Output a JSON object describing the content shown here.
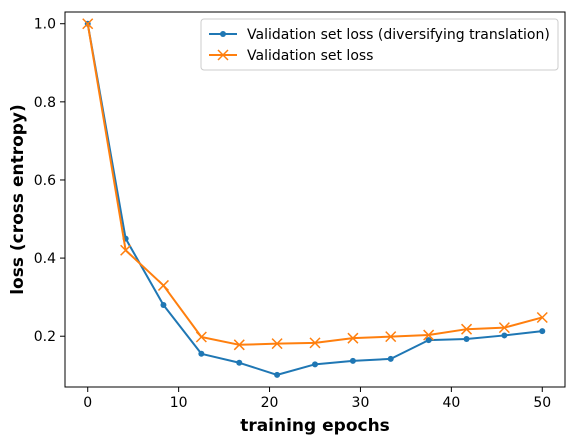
{
  "chart_data": {
    "type": "line",
    "title": "",
    "xlabel": "training epochs",
    "ylabel": "loss (cross entropy)",
    "xlim": [
      -2.5,
      52.5
    ],
    "ylim": [
      0.07,
      1.03
    ],
    "xticks": [
      0,
      10,
      20,
      30,
      40,
      50
    ],
    "yticks": [
      0.2,
      0.4,
      0.6,
      0.8,
      1.0
    ],
    "ytick_labels": [
      "0.2",
      "0.4",
      "0.6",
      "0.8",
      "1.0"
    ],
    "legend_position": "top-right",
    "grid": false,
    "series": [
      {
        "name": "Validation set loss (diversifying translation)",
        "color": "#1f77b4",
        "marker": "dot",
        "x": [
          0,
          4.17,
          8.33,
          12.5,
          16.67,
          20.83,
          25,
          29.17,
          33.33,
          37.5,
          41.67,
          45.83,
          50
        ],
        "y": [
          1.0,
          0.45,
          0.28,
          0.155,
          0.132,
          0.101,
          0.128,
          0.137,
          0.142,
          0.19,
          0.193,
          0.202,
          0.213
        ]
      },
      {
        "name": "Validation set loss",
        "color": "#ff7f0e",
        "marker": "x",
        "x": [
          0,
          4.17,
          8.33,
          12.5,
          16.67,
          20.83,
          25,
          29.17,
          33.33,
          37.5,
          41.67,
          45.83,
          50
        ],
        "y": [
          1.0,
          0.42,
          0.33,
          0.198,
          0.178,
          0.181,
          0.183,
          0.195,
          0.199,
          0.203,
          0.218,
          0.222,
          0.248
        ]
      }
    ]
  }
}
